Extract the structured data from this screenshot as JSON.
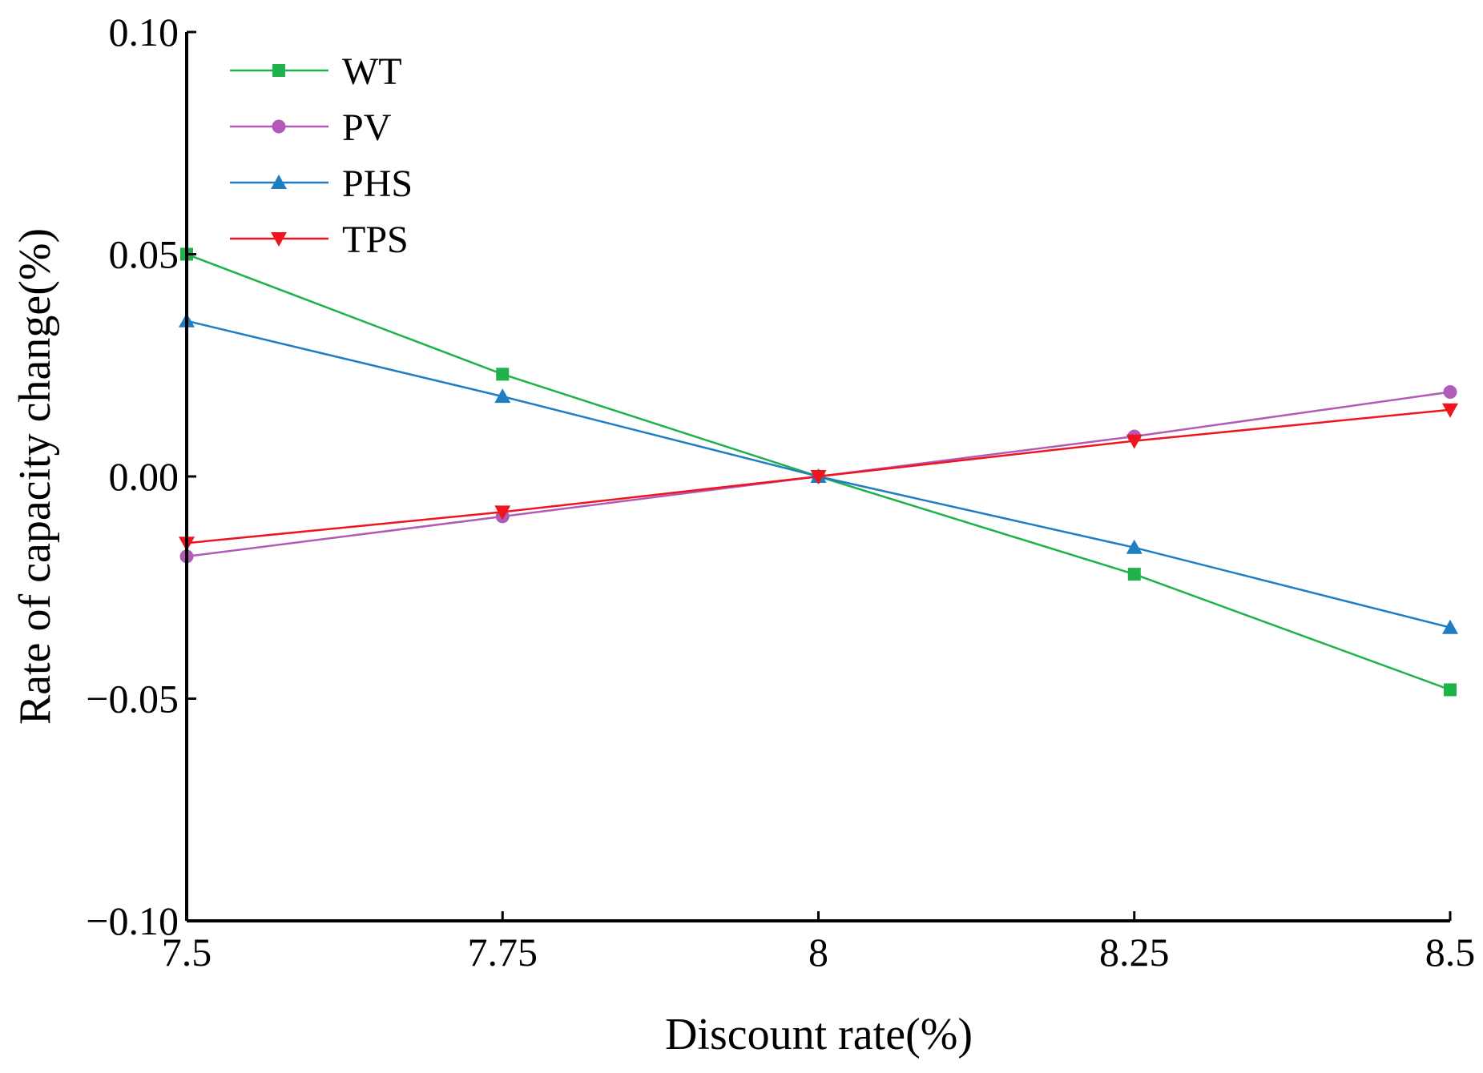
{
  "chart_data": {
    "type": "line",
    "title": "",
    "xlabel": "Discount rate(%)",
    "ylabel": "Rate of capacity change(%)",
    "x": [
      7.5,
      7.75,
      8,
      8.25,
      8.5
    ],
    "xtick_labels": [
      "7.5",
      "7.75",
      "8",
      "8.25",
      "8.5"
    ],
    "xlim": [
      7.5,
      8.5
    ],
    "ylim": [
      -0.1,
      0.1
    ],
    "yticks": [
      -0.1,
      -0.05,
      0.0,
      0.05,
      0.1
    ],
    "ytick_labels": [
      "−0.10",
      "−0.05",
      "0.00",
      "0.05",
      "0.10"
    ],
    "grid": false,
    "legend_position": "top-left",
    "series": [
      {
        "name": "WT",
        "color": "#1fb14a",
        "marker": "square",
        "values": [
          0.05,
          0.023,
          0.0,
          -0.022,
          -0.048
        ]
      },
      {
        "name": "PV",
        "color": "#b25ab8",
        "marker": "circle",
        "values": [
          -0.018,
          -0.009,
          0.0,
          0.009,
          0.019
        ]
      },
      {
        "name": "PHS",
        "color": "#1f7ec2",
        "marker": "triangle-up",
        "values": [
          0.035,
          0.018,
          0.0,
          -0.016,
          -0.034
        ]
      },
      {
        "name": "TPS",
        "color": "#f0141e",
        "marker": "triangle-down",
        "values": [
          -0.015,
          -0.008,
          0.0,
          0.008,
          0.015
        ]
      }
    ]
  }
}
